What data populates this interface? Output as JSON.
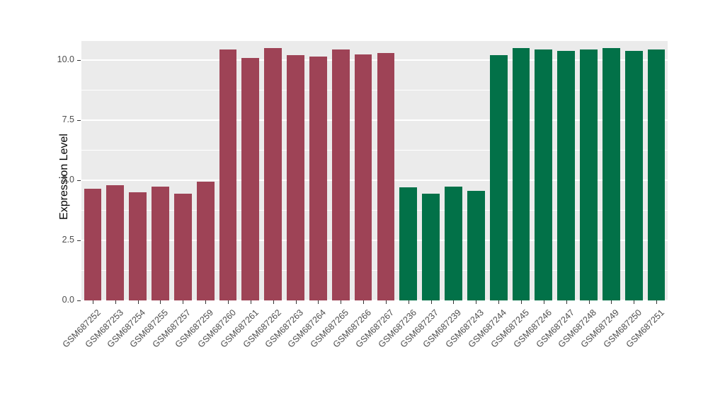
{
  "chart_data": {
    "type": "bar",
    "title": "",
    "xlabel": "",
    "ylabel": "Expression Level",
    "ylim": [
      0,
      10.8
    ],
    "yticks": [
      0.0,
      2.5,
      5.0,
      7.5,
      10.0
    ],
    "ytick_labels": [
      "0.0",
      "2.5",
      "5.0",
      "7.5",
      "10.0"
    ],
    "yticks_minor": [
      1.25,
      3.75,
      6.25,
      8.75
    ],
    "grid": "on",
    "legend": "none",
    "panel_background": "#EBEBEB",
    "categories": [
      "GSM687252",
      "GSM687253",
      "GSM687254",
      "GSM687255",
      "GSM687257",
      "GSM687259",
      "GSM687260",
      "GSM687261",
      "GSM687262",
      "GSM687263",
      "GSM687264",
      "GSM687265",
      "GSM687266",
      "GSM687267",
      "GSM687236",
      "GSM687237",
      "GSM687239",
      "GSM687243",
      "GSM687244",
      "GSM687245",
      "GSM687246",
      "GSM687247",
      "GSM687248",
      "GSM687249",
      "GSM687250",
      "GSM687251"
    ],
    "values": [
      4.65,
      4.8,
      4.5,
      4.75,
      4.45,
      4.95,
      10.45,
      10.1,
      10.5,
      10.2,
      10.15,
      10.45,
      10.25,
      10.3,
      4.7,
      4.45,
      4.75,
      4.55,
      10.2,
      10.5,
      10.45,
      10.4,
      10.45,
      10.5,
      10.4,
      10.45
    ],
    "groups": [
      "maroon",
      "maroon",
      "maroon",
      "maroon",
      "maroon",
      "maroon",
      "maroon",
      "maroon",
      "maroon",
      "maroon",
      "maroon",
      "maroon",
      "maroon",
      "maroon",
      "green",
      "green",
      "green",
      "green",
      "green",
      "green",
      "green",
      "green",
      "green",
      "green",
      "green",
      "green"
    ],
    "series_colors": {
      "maroon": "#9E4356",
      "green": "#027148"
    }
  }
}
